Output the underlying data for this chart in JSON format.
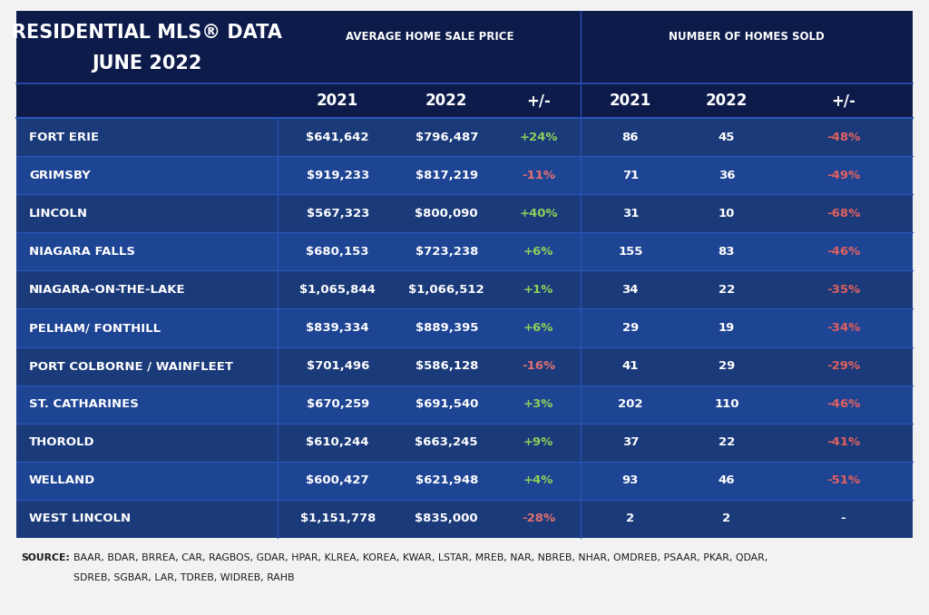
{
  "title_line1": "RESIDENTIAL MLS® DATA",
  "title_line2": "JUNE 2022",
  "header_group1": "AVERAGE HOME SALE PRICE",
  "header_group2": "NUMBER OF HOMES SOLD",
  "col_headers": [
    "2021",
    "2022",
    "+/-",
    "2021",
    "2022",
    "+/-"
  ],
  "rows": [
    {
      "city": "FORT ERIE",
      "avg_2021": "$641,642",
      "avg_2022": "$796,487",
      "avg_chg": "+24%",
      "avg_chg_pos": true,
      "num_2021": "86",
      "num_2022": "45",
      "num_chg": "-48%",
      "num_chg_pos": false
    },
    {
      "city": "GRIMSBY",
      "avg_2021": "$919,233",
      "avg_2022": "$817,219",
      "avg_chg": "-11%",
      "avg_chg_pos": false,
      "num_2021": "71",
      "num_2022": "36",
      "num_chg": "-49%",
      "num_chg_pos": false
    },
    {
      "city": "LINCOLN",
      "avg_2021": "$567,323",
      "avg_2022": "$800,090",
      "avg_chg": "+40%",
      "avg_chg_pos": true,
      "num_2021": "31",
      "num_2022": "10",
      "num_chg": "-68%",
      "num_chg_pos": false
    },
    {
      "city": "NIAGARA FALLS",
      "avg_2021": "$680,153",
      "avg_2022": "$723,238",
      "avg_chg": "+6%",
      "avg_chg_pos": true,
      "num_2021": "155",
      "num_2022": "83",
      "num_chg": "-46%",
      "num_chg_pos": false
    },
    {
      "city": "NIAGARA-ON-THE-LAKE",
      "avg_2021": "$1,065,844",
      "avg_2022": "$1,066,512",
      "avg_chg": "+1%",
      "avg_chg_pos": true,
      "num_2021": "34",
      "num_2022": "22",
      "num_chg": "-35%",
      "num_chg_pos": false
    },
    {
      "city": "PELHAM/ FONTHILL",
      "avg_2021": "$839,334",
      "avg_2022": "$889,395",
      "avg_chg": "+6%",
      "avg_chg_pos": true,
      "num_2021": "29",
      "num_2022": "19",
      "num_chg": "-34%",
      "num_chg_pos": false
    },
    {
      "city": "PORT COLBORNE / WAINFLEET",
      "avg_2021": "$701,496",
      "avg_2022": "$586,128",
      "avg_chg": "-16%",
      "avg_chg_pos": false,
      "num_2021": "41",
      "num_2022": "29",
      "num_chg": "-29%",
      "num_chg_pos": false
    },
    {
      "city": "ST. CATHARINES",
      "avg_2021": "$670,259",
      "avg_2022": "$691,540",
      "avg_chg": "+3%",
      "avg_chg_pos": true,
      "num_2021": "202",
      "num_2022": "110",
      "num_chg": "-46%",
      "num_chg_pos": false
    },
    {
      "city": "THOROLD",
      "avg_2021": "$610,244",
      "avg_2022": "$663,245",
      "avg_chg": "+9%",
      "avg_chg_pos": true,
      "num_2021": "37",
      "num_2022": "22",
      "num_chg": "-41%",
      "num_chg_pos": false
    },
    {
      "city": "WELLAND",
      "avg_2021": "$600,427",
      "avg_2022": "$621,948",
      "avg_chg": "+4%",
      "avg_chg_pos": true,
      "num_2021": "93",
      "num_2022": "46",
      "num_chg": "-51%",
      "num_chg_pos": false
    },
    {
      "city": "WEST LINCOLN",
      "avg_2021": "$1,151,778",
      "avg_2022": "$835,000",
      "avg_chg": "-28%",
      "avg_chg_pos": false,
      "num_2021": "2",
      "num_2022": "2",
      "num_chg": "-",
      "num_chg_pos": null
    }
  ],
  "source_line1": "BAAR, BDAR, BRREA, CAR, RAGBOS, GDAR, HPAR, KLREA, KOREA, KWAR, LSTAR, MREB, NAR, NBREB, NHAR, OMDREB, PSAAR, PKAR, QDAR,",
  "source_line2": "SDREB, SGBAR, LAR, TDREB, WIDREB, RAHB",
  "bg_header": "#0d1b4b",
  "bg_row_odd": "#1a3a7a",
  "bg_row_even": "#1e4494",
  "text_white": "#ffffff",
  "text_green": "#8ecf5a",
  "text_red_chg": "#e06060",
  "text_red_neg": "#e07070",
  "sep_color": "#2a55b5",
  "outer_bg": "#f2f2f2",
  "figw": 10.24,
  "figh": 6.78,
  "dpi": 100
}
